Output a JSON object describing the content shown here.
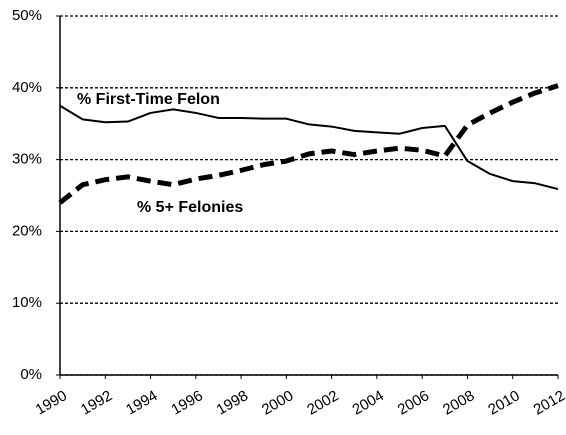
{
  "chart_data": {
    "type": "line",
    "x": [
      1990,
      1991,
      1992,
      1993,
      1994,
      1995,
      1996,
      1997,
      1998,
      1999,
      2000,
      2001,
      2002,
      2003,
      2004,
      2005,
      2006,
      2007,
      2008,
      2009,
      2010,
      2011,
      2012
    ],
    "series": [
      {
        "name": "% First-Time Felon",
        "color": "#000000",
        "style": "solid",
        "values": [
          37.5,
          35.6,
          35.2,
          35.3,
          36.5,
          37.0,
          36.5,
          35.8,
          35.8,
          35.7,
          35.7,
          34.9,
          34.6,
          34.0,
          33.8,
          33.6,
          34.4,
          34.7,
          29.8,
          28.0,
          27.0,
          26.7,
          25.9
        ]
      },
      {
        "name": "% 5+ Felonies",
        "color": "#000000",
        "style": "dashed",
        "values": [
          24.0,
          26.5,
          27.2,
          27.6,
          27.0,
          26.5,
          27.3,
          27.8,
          28.5,
          29.3,
          29.8,
          30.8,
          31.2,
          30.7,
          31.2,
          31.6,
          31.3,
          30.5,
          34.8,
          36.5,
          38.0,
          39.3,
          40.3
        ]
      }
    ],
    "xlim": [
      1990,
      2012
    ],
    "xticks": [
      1990,
      1992,
      1994,
      1996,
      1998,
      2000,
      2002,
      2004,
      2006,
      2008,
      2010,
      2012
    ],
    "ylim": [
      0,
      50
    ],
    "yticks": [
      {
        "value": 0,
        "label": "0%"
      },
      {
        "value": 10,
        "label": "10%"
      },
      {
        "value": 20,
        "label": "20%"
      },
      {
        "value": 30,
        "label": "30%"
      },
      {
        "value": 40,
        "label": "40%"
      },
      {
        "value": 50,
        "label": "50%"
      }
    ],
    "grid": true
  }
}
